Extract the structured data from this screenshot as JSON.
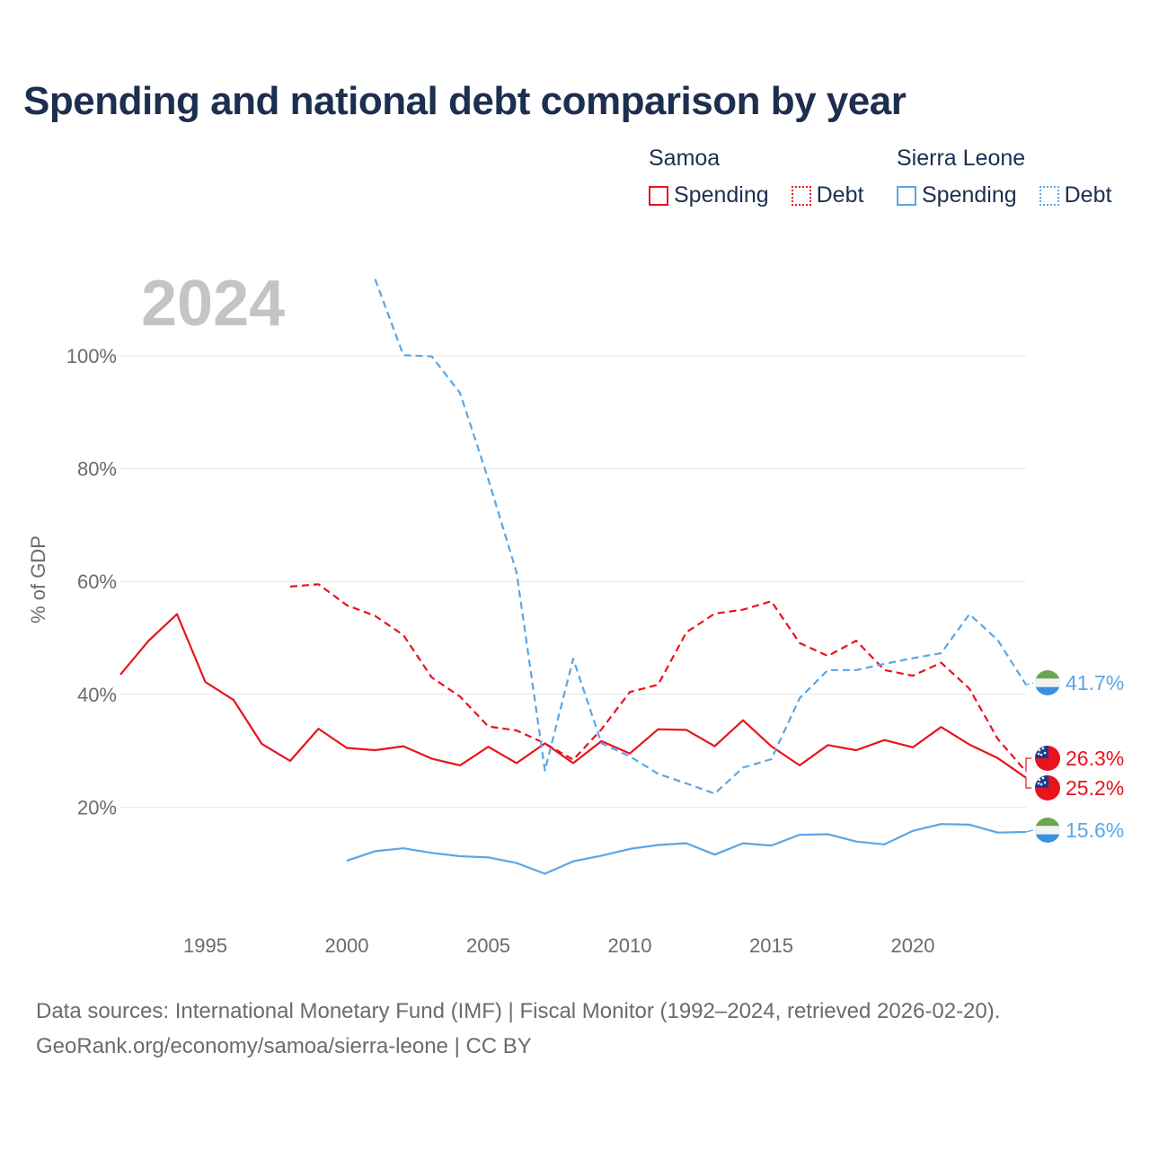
{
  "title": "Spending and national debt comparison by year",
  "legend": {
    "groups": [
      {
        "name": "Samoa",
        "color": "#e8131d",
        "items": [
          {
            "label": "Spending",
            "style": "solid"
          },
          {
            "label": "Debt",
            "style": "dotted"
          }
        ]
      },
      {
        "name": "Sierra Leone",
        "color": "#5aa6e6",
        "items": [
          {
            "label": "Spending",
            "style": "solid"
          },
          {
            "label": "Debt",
            "style": "dotted"
          }
        ]
      }
    ]
  },
  "footer": {
    "line1": "Data sources: International Monetary Fund (IMF) | Fiscal Monitor (1992–2024, retrieved 2026-02-20).",
    "line2": "GeoRank.org/economy/samoa/sierra-leone | CC BY"
  },
  "chart_data": {
    "type": "line",
    "year_label": "2024",
    "ylabel": "% of GDP",
    "xlim": [
      1992,
      2024
    ],
    "ylim": [
      0,
      115
    ],
    "x_ticks": [
      1995,
      2000,
      2005,
      2010,
      2015,
      2020
    ],
    "y_ticks": [
      20,
      40,
      60,
      80,
      100
    ],
    "y_tick_labels": [
      "20%",
      "40%",
      "60%",
      "80%",
      "100%"
    ],
    "series": [
      {
        "name": "Samoa Spending",
        "country": "Samoa",
        "metric": "Spending",
        "color": "#e8131d",
        "dash": false,
        "x": [
          1992,
          1993,
          1994,
          1995,
          1996,
          1997,
          1998,
          1999,
          2000,
          2001,
          2002,
          2003,
          2004,
          2005,
          2006,
          2007,
          2008,
          2009,
          2010,
          2011,
          2012,
          2013,
          2014,
          2015,
          2016,
          2017,
          2018,
          2019,
          2020,
          2021,
          2022,
          2023,
          2024
        ],
        "values": [
          43.5,
          49.5,
          54.2,
          42.2,
          39.0,
          31.2,
          28.2,
          33.9,
          30.5,
          30.1,
          30.8,
          28.6,
          27.4,
          30.7,
          27.8,
          31.3,
          27.8,
          31.7,
          29.5,
          33.8,
          33.7,
          30.8,
          35.4,
          30.8,
          27.4,
          31.0,
          30.1,
          31.9,
          30.6,
          34.2,
          31.1,
          28.7,
          25.2
        ],
        "end_label": "25.2%"
      },
      {
        "name": "Samoa Debt",
        "country": "Samoa",
        "metric": "Debt",
        "color": "#e8131d",
        "dash": true,
        "x": [
          1998,
          1999,
          2000,
          2001,
          2002,
          2003,
          2004,
          2005,
          2006,
          2007,
          2008,
          2009,
          2010,
          2011,
          2012,
          2013,
          2014,
          2015,
          2016,
          2017,
          2018,
          2019,
          2020,
          2021,
          2022,
          2023,
          2024
        ],
        "values": [
          59.1,
          59.5,
          55.8,
          53.9,
          50.5,
          43.0,
          39.6,
          34.3,
          33.6,
          31.3,
          28.4,
          33.8,
          40.4,
          41.7,
          51.0,
          54.3,
          55.0,
          56.5,
          49.1,
          46.8,
          49.5,
          44.3,
          43.3,
          45.6,
          41.0,
          32.1,
          26.3
        ],
        "end_label": "26.3%"
      },
      {
        "name": "Sierra Leone Spending",
        "country": "Sierra Leone",
        "metric": "Spending",
        "color": "#5aa6e6",
        "dash": false,
        "x": [
          2000,
          2001,
          2002,
          2003,
          2004,
          2005,
          2006,
          2007,
          2008,
          2009,
          2010,
          2011,
          2012,
          2013,
          2014,
          2015,
          2016,
          2017,
          2018,
          2019,
          2020,
          2021,
          2022,
          2023,
          2024
        ],
        "values": [
          10.5,
          12.2,
          12.7,
          11.9,
          11.3,
          11.1,
          10.1,
          8.2,
          10.4,
          11.4,
          12.6,
          13.3,
          13.6,
          11.6,
          13.6,
          13.2,
          15.1,
          15.2,
          13.9,
          13.4,
          15.8,
          17.0,
          16.9,
          15.5,
          15.6
        ],
        "end_label": "15.6%"
      },
      {
        "name": "Sierra Leone Debt",
        "country": "Sierra Leone",
        "metric": "Debt",
        "color": "#5aa6e6",
        "dash": true,
        "x": [
          2001,
          2002,
          2003,
          2004,
          2005,
          2006,
          2007,
          2008,
          2009,
          2010,
          2011,
          2012,
          2013,
          2014,
          2015,
          2016,
          2017,
          2018,
          2019,
          2020,
          2021,
          2022,
          2023,
          2024
        ],
        "values": [
          113.6,
          100.1,
          99.9,
          93.4,
          78.1,
          61.6,
          26.5,
          46.3,
          31.3,
          29.0,
          25.9,
          24.2,
          22.4,
          27.0,
          28.5,
          39.3,
          44.3,
          44.3,
          45.4,
          46.4,
          47.3,
          54.2,
          49.6,
          41.7
        ],
        "end_label": "41.7%"
      }
    ],
    "end_labels": [
      {
        "series": "Sierra Leone Debt",
        "text": "41.7%",
        "flag": "sierra-leone",
        "y_value": 41.7
      },
      {
        "series": "Samoa Debt",
        "text": "26.3%",
        "flag": "samoa",
        "y_value": 26.3
      },
      {
        "series": "Samoa Spending",
        "text": "25.2%",
        "flag": "samoa",
        "y_value": 25.2
      },
      {
        "series": "Sierra Leone Spending",
        "text": "15.6%",
        "flag": "sierra-leone",
        "y_value": 15.6
      }
    ]
  }
}
